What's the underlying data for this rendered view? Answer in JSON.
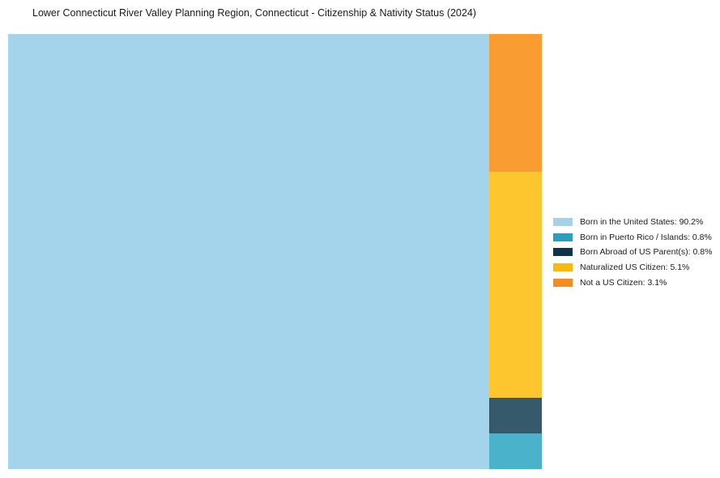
{
  "title": "Lower Connecticut River Valley Planning Region, Connecticut - Citizenship & Nativity Status (2024)",
  "chart_data": {
    "type": "treemap",
    "title": "Lower Connecticut River Valley Planning Region, Connecticut - Citizenship & Nativity Status (2024)",
    "layout": "slice-and-dice: largest tile fills left side full height, remaining tiles stacked vertically in right column",
    "legend_position": "right",
    "total": 100.0,
    "series": [
      {
        "name": "Born in the United States",
        "value": 90.2,
        "tile_color": "#a4d4ec",
        "legend_color": "#a7d1e8",
        "legend_label": "Born in the United States: 90.2%"
      },
      {
        "name": "Born in Puerto Rico / Islands",
        "value": 0.8,
        "tile_color": "#4ab3cb",
        "legend_color": "#2d9fbc",
        "legend_label": "Born in Puerto Rico / Islands: 0.8%"
      },
      {
        "name": "Born Abroad of US Parent(s)",
        "value": 0.8,
        "tile_color": "#36596c",
        "legend_color": "#11334a",
        "legend_label": "Born Abroad of US Parent(s): 0.8%"
      },
      {
        "name": "Naturalized US Citizen",
        "value": 5.1,
        "tile_color": "#fdc62e",
        "legend_color": "#fdb713",
        "legend_label": "Naturalized US Citizen: 5.1%"
      },
      {
        "name": "Not a US Citizen",
        "value": 3.1,
        "tile_color": "#f99d32",
        "legend_color": "#f68b1f",
        "legend_label": "Not a US Citizen: 3.1%"
      }
    ],
    "root": "Born in the United States",
    "column_order_top_to_bottom": [
      "Not a US Citizen",
      "Naturalized US Citizen",
      "Born Abroad of US Parent(s)",
      "Born in Puerto Rico / Islands"
    ]
  }
}
